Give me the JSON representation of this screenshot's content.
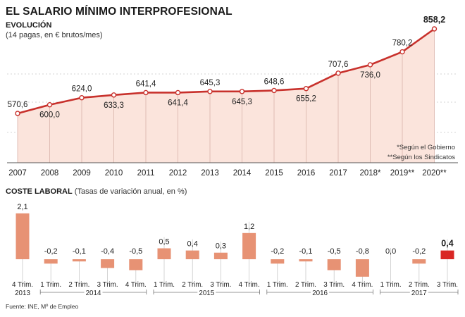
{
  "title": "EL SALARIO MÍNIMO INTERPROFESIONAL",
  "section1_label": "EVOLUCIÓN",
  "section1_unit": "(14 pagas, en € brutos/mes)",
  "section2_label": "COSTE LABORAL",
  "section2_unit": "(Tasas de variación anual, en %)",
  "notes": [
    "*Según el Gobierno",
    "**Según los Sindicatos"
  ],
  "source": "Fuente: INE, Mº de Empleo",
  "colors": {
    "line": "#c8312c",
    "area": "#fbe4dc",
    "bar": "#e79274",
    "bar_highlight": "#d92724"
  },
  "chart_data": [
    {
      "type": "area",
      "categories": [
        "2007",
        "2008",
        "2009",
        "2010",
        "2011",
        "2012",
        "2013",
        "2014",
        "2015",
        "2016",
        "2017",
        "2018*",
        "2019**",
        "2020**"
      ],
      "values": [
        570.6,
        600.0,
        624.0,
        633.3,
        641.4,
        641.4,
        645.3,
        645.3,
        648.6,
        655.2,
        707.6,
        736.0,
        780.2,
        858.2
      ],
      "value_labels": [
        "570,6",
        "600,0",
        "624,0",
        "633,3",
        "641,4",
        "641,4",
        "645,3",
        "645,3",
        "648,6",
        "655,2",
        "707,6",
        "736,0",
        "780,2",
        "858,2"
      ],
      "title": "EVOLUCIÓN",
      "ylabel": "(14 pagas, en € brutos/mes)",
      "grid": true
    },
    {
      "type": "bar",
      "categories": [
        "4 Trim. 2013",
        "1 Trim.",
        "2 Trim.",
        "3 Trim.",
        "4 Trim.",
        "1 Trim.",
        "2 Trim.",
        "3 Trim.",
        "4 Trim.",
        "1 Trim.",
        "2 Trim.",
        "3 Trim.",
        "4 Trim.",
        "1 Trim.",
        "2 Trim.",
        "3 Trim."
      ],
      "values": [
        2.1,
        -0.2,
        -0.1,
        -0.4,
        -0.5,
        0.5,
        0.4,
        0.3,
        1.2,
        -0.2,
        -0.1,
        -0.5,
        -0.8,
        0.0,
        -0.2,
        0.4
      ],
      "value_labels": [
        "2,1",
        "-0,2",
        "-0,1",
        "-0,4",
        "-0,5",
        "0,5",
        "0,4",
        "0,3",
        "1,2",
        "-0,2",
        "-0,1",
        "-0,5",
        "-0,8",
        "0,0",
        "-0,2",
        "0,4"
      ],
      "tick_lines1": [
        "4 Trim.",
        "1 Trim.",
        "2 Trim.",
        "3 Trim.",
        "4 Trim.",
        "1 Trim.",
        "2 Trim.",
        "3 Trim.",
        "4 Trim.",
        "1 Trim.",
        "2 Trim.",
        "3 Trim.",
        "4 Trim.",
        "1 Trim.",
        "2 Trim.",
        "3 Trim."
      ],
      "year_groups": [
        {
          "label": "2013",
          "from": 0,
          "to": 0
        },
        {
          "label": "2014",
          "from": 1,
          "to": 4
        },
        {
          "label": "2015",
          "from": 5,
          "to": 8
        },
        {
          "label": "2016",
          "from": 9,
          "to": 12
        },
        {
          "label": "2017",
          "from": 13,
          "to": 15
        }
      ],
      "highlight_index": 15,
      "title": "COSTE LABORAL",
      "ylabel": "(Tasas de variación anual, en %)"
    }
  ]
}
